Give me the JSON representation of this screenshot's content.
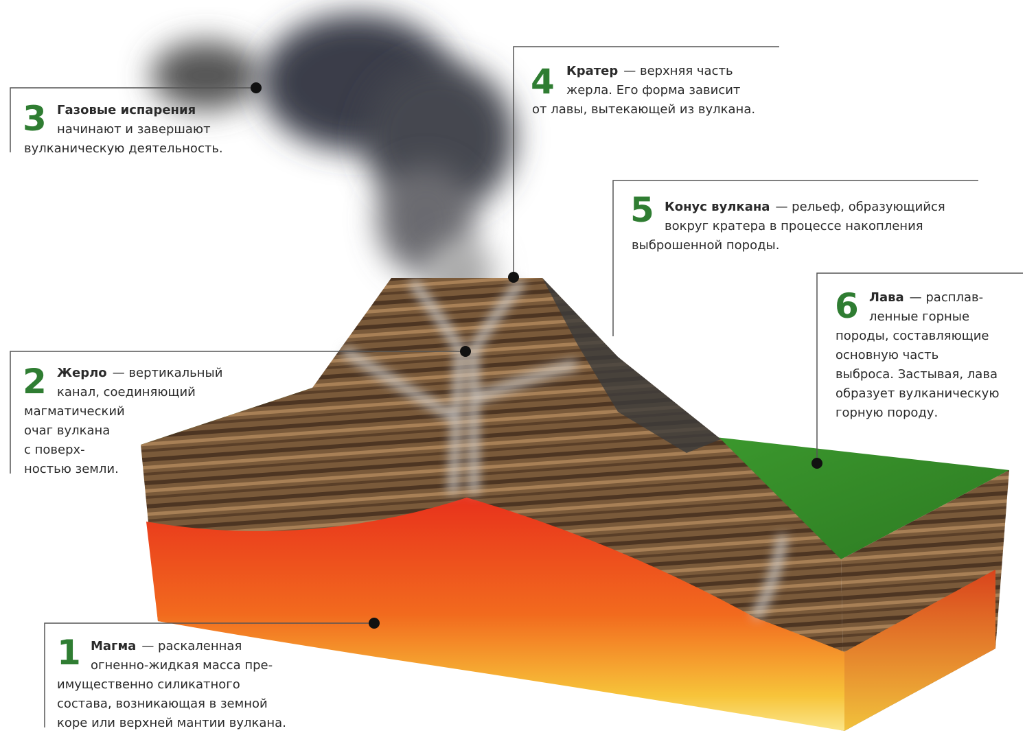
{
  "callouts": [
    {
      "number": "1",
      "term": "Магма",
      "lines": [
        "— раскаленная",
        "огненно-жидкая масса пре-",
        "имущественно силикатного",
        "состава, возникающая в земной",
        "коре или верхней мантии вулкана."
      ]
    },
    {
      "number": "2",
      "term": "Жерло",
      "lines": [
        "— вертикальный",
        "канал, соединяющий",
        "магматический",
        "очаг вулкана",
        "с поверх-",
        "ностью земли."
      ]
    },
    {
      "number": "3",
      "term": "Газовые испарения",
      "lines": [
        "",
        "начинают и завершают",
        "вулканическую деятельность."
      ]
    },
    {
      "number": "4",
      "term": "Кратер",
      "lines": [
        "— верхняя часть",
        "жерла. Его форма зависит",
        "от лавы, вытекающей из вулкана."
      ]
    },
    {
      "number": "5",
      "term": "Конус вулкана",
      "lines": [
        "— рельеф, образующийся",
        "вокруг кратера в процессе накопления",
        "выброшенной породы."
      ]
    },
    {
      "number": "6",
      "term": "Лава",
      "lines": [
        "— расплав-",
        "ленные горные",
        "породы, составляющие",
        "основную часть",
        "выброса. Застывая, лава",
        "образует вулканическую",
        "горную породу."
      ]
    }
  ]
}
